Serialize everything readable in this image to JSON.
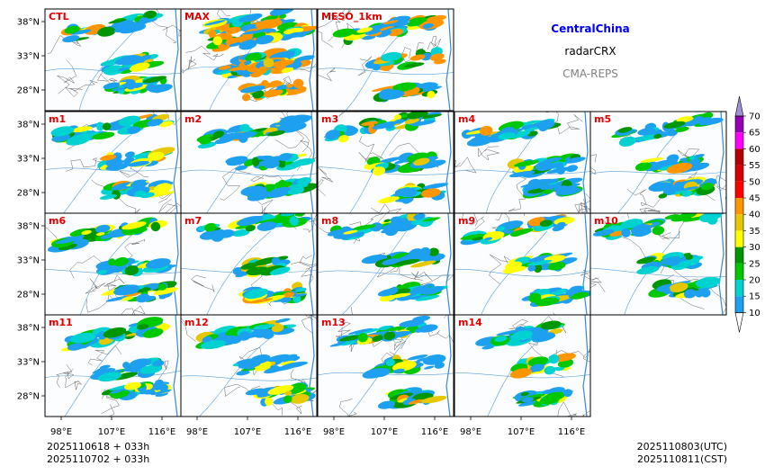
{
  "figure": {
    "region": "CentralChina",
    "variable": "radarCRX",
    "model": "CMA-REPS",
    "region_color": "#0000ee",
    "model_color": "#808080"
  },
  "chart_data": {
    "type": "heatmap",
    "title": "CentralChina radarCRX CMA-REPS",
    "panels": [
      "CTL",
      "MAX",
      "MESO_1km",
      "m1",
      "m2",
      "m3",
      "m4",
      "m5",
      "m6",
      "m7",
      "m8",
      "m9",
      "m10",
      "m11",
      "m12",
      "m13",
      "m14"
    ],
    "lat_ticks": [
      "38°N",
      "33°N",
      "28°N"
    ],
    "lon_ticks": [
      "98°E",
      "107°E",
      "116°E"
    ],
    "colorbar": {
      "levels": [
        10,
        15,
        20,
        25,
        30,
        35,
        40,
        45,
        50,
        55,
        60,
        65,
        70
      ],
      "colors": [
        "#1ea0f0",
        "#00d2d2",
        "#00c800",
        "#009600",
        "#ffff00",
        "#e6c800",
        "#ff9600",
        "#ff0000",
        "#d70000",
        "#b40000",
        "#ff00ff",
        "#9600b4",
        "#a090d8"
      ],
      "extend": "both"
    }
  },
  "init_info": {
    "line1": "2025110618  +  033h",
    "line2": "2025110702  +  033h"
  },
  "valid_info": {
    "utc": "2025110803(UTC)",
    "cst": "2025110811(CST)"
  }
}
